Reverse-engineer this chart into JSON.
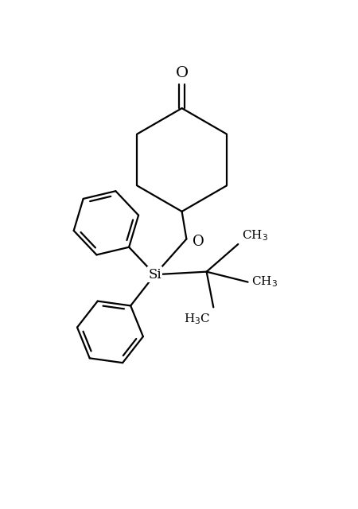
{
  "background_color": "#ffffff",
  "line_color": "#000000",
  "line_width": 1.6,
  "figsize": [
    4.5,
    6.4
  ],
  "dpi": 100,
  "font_size": 12,
  "xlim": [
    -3.0,
    3.2
  ],
  "ylim": [
    -3.5,
    3.8
  ]
}
